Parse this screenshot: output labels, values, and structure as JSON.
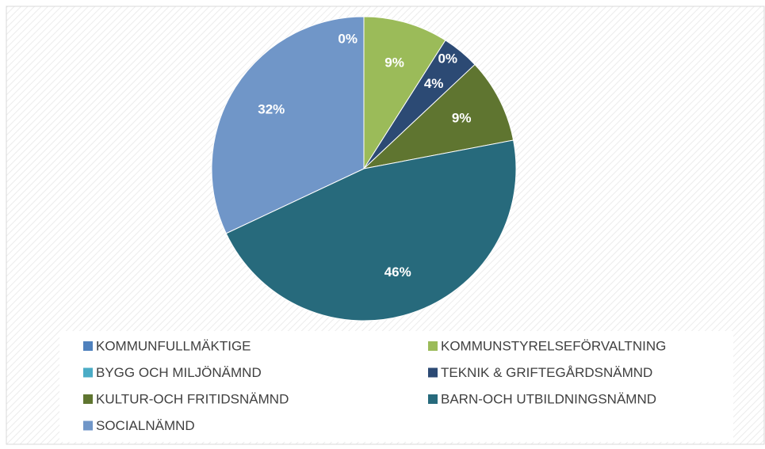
{
  "chart_data": {
    "type": "pie",
    "categories": [
      "KOMMUNFULLMÄKTIGE",
      "KOMMUNSTYRELSEFÖRVALTNING",
      "BYGG OCH MILJÖNÄMND",
      "TEKNIK & GRIFTEGÅRDSNÄMND",
      "KULTUR-OCH FRITIDSNÄMND",
      "BARN-OCH UTBILDNINGSNÄMND",
      "SOCIALNÄMND"
    ],
    "values": [
      0,
      9,
      0,
      4,
      9,
      46,
      32
    ],
    "value_labels": [
      "0%",
      "9%",
      "0%",
      "4%",
      "9%",
      "46%",
      "32%"
    ],
    "colors": [
      "#4f81bd",
      "#9bbb59",
      "#4bacc6",
      "#2c4a74",
      "#5f7530",
      "#276a7c",
      "#7096c8"
    ],
    "legend": "bottom"
  }
}
